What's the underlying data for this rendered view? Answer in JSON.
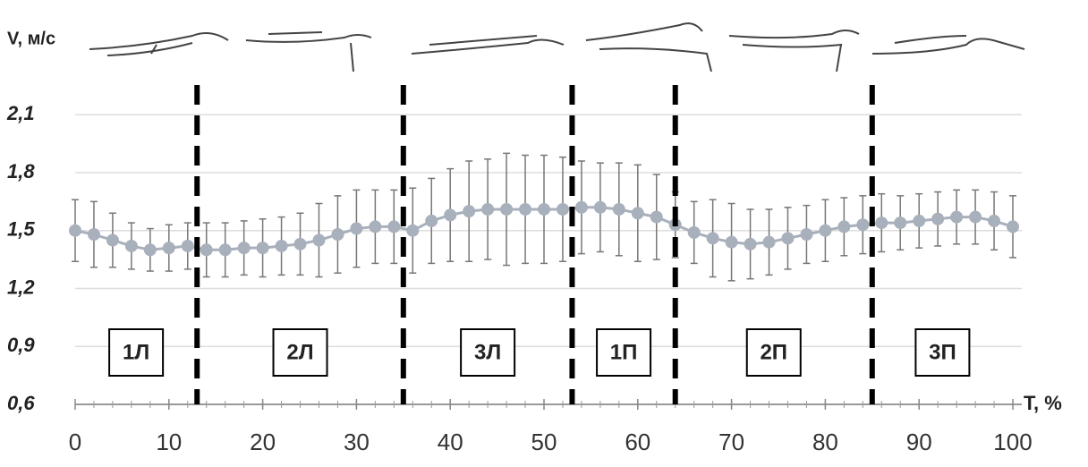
{
  "chart_data": {
    "type": "line",
    "y_label": "V, м/с",
    "x_label": "T, %",
    "x": [
      0,
      2,
      4,
      6,
      8,
      10,
      12,
      14,
      16,
      18,
      20,
      22,
      24,
      26,
      28,
      30,
      32,
      34,
      36,
      38,
      40,
      42,
      44,
      46,
      48,
      50,
      52,
      54,
      56,
      58,
      60,
      62,
      64,
      66,
      68,
      70,
      72,
      74,
      76,
      78,
      80,
      82,
      84,
      86,
      88,
      90,
      92,
      94,
      96,
      98,
      100
    ],
    "series": [
      {
        "color": "#a8b0bc",
        "values": [
          1.5,
          1.48,
          1.45,
          1.42,
          1.4,
          1.41,
          1.42,
          1.4,
          1.4,
          1.41,
          1.41,
          1.42,
          1.43,
          1.45,
          1.48,
          1.51,
          1.52,
          1.52,
          1.5,
          1.55,
          1.58,
          1.6,
          1.61,
          1.61,
          1.61,
          1.61,
          1.61,
          1.62,
          1.62,
          1.61,
          1.59,
          1.57,
          1.53,
          1.49,
          1.46,
          1.44,
          1.43,
          1.44,
          1.46,
          1.48,
          1.5,
          1.52,
          1.53,
          1.54,
          1.54,
          1.55,
          1.56,
          1.57,
          1.57,
          1.55,
          1.52
        ],
        "errors": [
          0.16,
          0.17,
          0.14,
          0.12,
          0.11,
          0.12,
          0.12,
          0.14,
          0.14,
          0.14,
          0.15,
          0.15,
          0.16,
          0.19,
          0.2,
          0.2,
          0.19,
          0.19,
          0.22,
          0.22,
          0.24,
          0.26,
          0.26,
          0.29,
          0.28,
          0.28,
          0.27,
          0.24,
          0.23,
          0.24,
          0.25,
          0.22,
          0.17,
          0.16,
          0.2,
          0.2,
          0.18,
          0.17,
          0.16,
          0.15,
          0.16,
          0.15,
          0.15,
          0.15,
          0.14,
          0.14,
          0.14,
          0.14,
          0.14,
          0.15,
          0.16
        ]
      }
    ],
    "phase_bounds": [
      13,
      35,
      53,
      64,
      85
    ],
    "phase_labels": [
      "1Л",
      "2Л",
      "3Л",
      "1П",
      "2П",
      "3П"
    ],
    "xlim": [
      0,
      100
    ],
    "xticks": [
      0,
      10,
      20,
      30,
      40,
      50,
      60,
      70,
      80,
      90,
      100
    ],
    "ylim": [
      0.6,
      2.3
    ],
    "yticks": [
      {
        "value": 0.6,
        "label": "0,6"
      },
      {
        "value": 0.9,
        "label": "0,9"
      },
      {
        "value": 1.2,
        "label": "1,2"
      },
      {
        "value": 1.5,
        "label": "1,5"
      },
      {
        "value": 1.8,
        "label": "1,8"
      },
      {
        "value": 2.1,
        "label": "2,1"
      }
    ],
    "grid": true
  }
}
